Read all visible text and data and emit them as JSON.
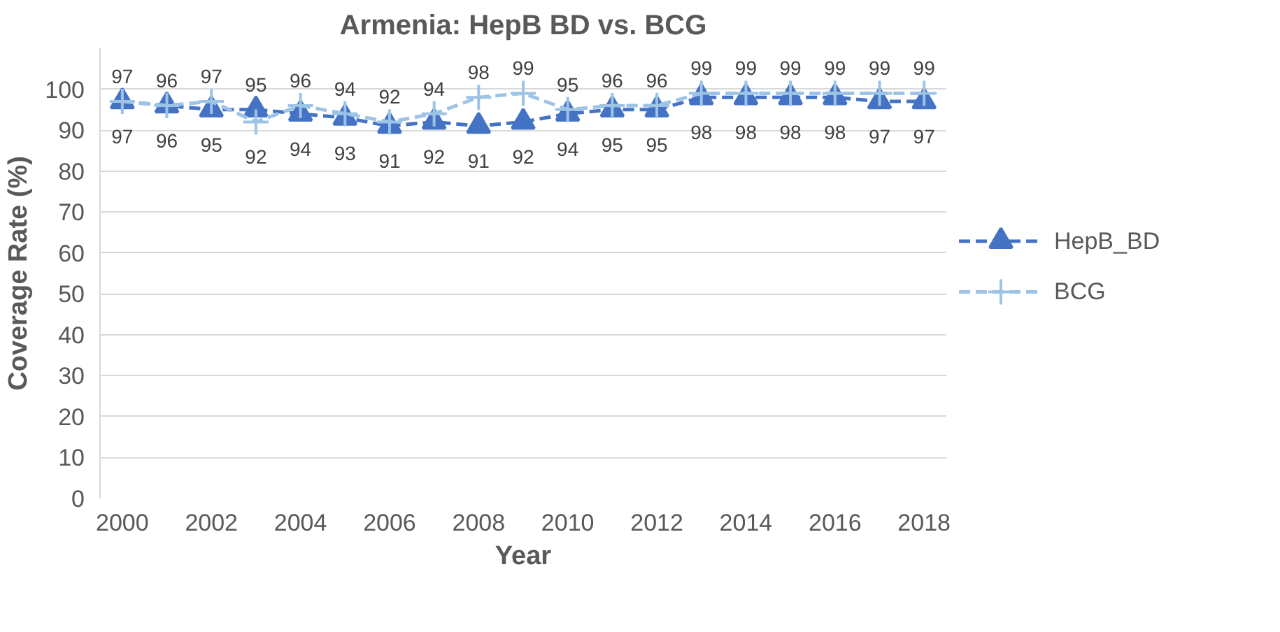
{
  "chart_data": {
    "type": "line",
    "title": "Armenia: HepB BD vs. BCG",
    "xlabel": "Year",
    "ylabel": "Coverage Rate (%)",
    "x": [
      2000,
      2001,
      2002,
      2003,
      2004,
      2005,
      2006,
      2007,
      2008,
      2009,
      2010,
      2011,
      2012,
      2013,
      2014,
      2015,
      2016,
      2017,
      2018
    ],
    "series": [
      {
        "name": "HepB_BD",
        "color": "#4472c4",
        "marker": "triangle",
        "line_style": "dashed",
        "values": [
          97,
          96,
          95,
          95,
          94,
          93,
          91,
          92,
          91,
          92,
          94,
          95,
          95,
          98,
          98,
          98,
          98,
          97,
          97
        ]
      },
      {
        "name": "BCG",
        "color": "#9dc3e6",
        "marker": "cross",
        "line_style": "dashed",
        "values": [
          97,
          96,
          97,
          92,
          96,
          94,
          92,
          94,
          98,
          99,
          95,
          96,
          96,
          99,
          99,
          99,
          99,
          99,
          99
        ]
      }
    ],
    "xlim": [
      1999.5,
      2018.5
    ],
    "xticks": [
      2000,
      2002,
      2004,
      2006,
      2008,
      2010,
      2012,
      2014,
      2016,
      2018
    ],
    "ylim": [
      0,
      110
    ],
    "yticks": [
      0,
      10,
      20,
      30,
      40,
      50,
      60,
      70,
      80,
      90,
      100
    ],
    "grid": "y",
    "legend": "right",
    "data_labels": true
  }
}
